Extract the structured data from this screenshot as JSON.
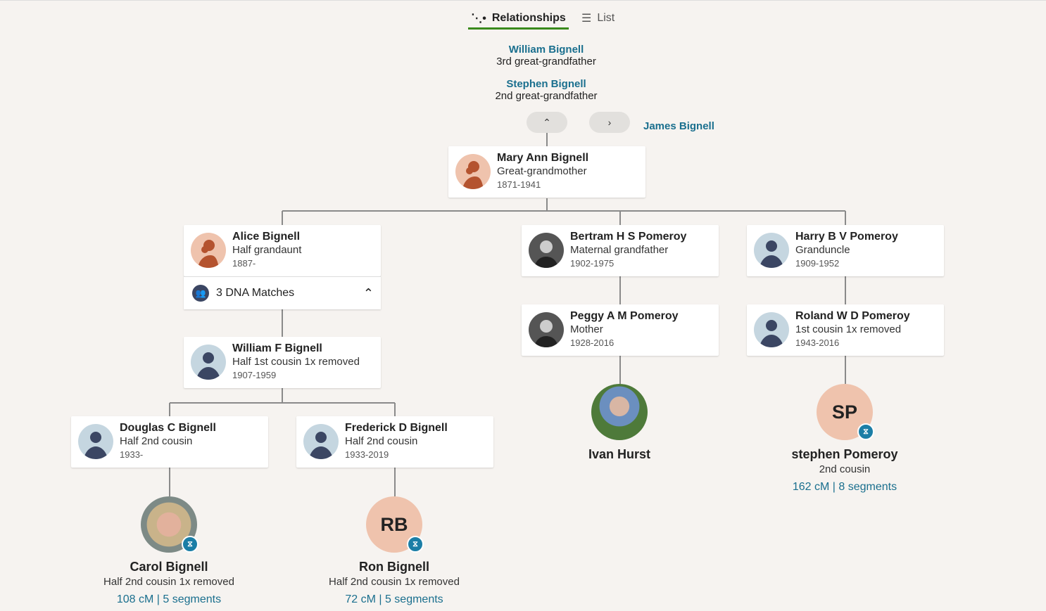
{
  "tabs": {
    "relationships": "Relationships",
    "list": "List",
    "active": "relationships",
    "accent": "#3a8a1c"
  },
  "ancestors": [
    {
      "name": "William Bignell",
      "relation": "3rd great-grandfather"
    },
    {
      "name": "Stephen Bignell",
      "relation": "2nd great-grandfather"
    }
  ],
  "sibling_link": "James Bignell",
  "cards": {
    "mary": {
      "name": "Mary Ann Bignell",
      "relation": "Great-grandmother",
      "years": "1871-1941",
      "avatar": "female-silhouette"
    },
    "alice": {
      "name": "Alice Bignell",
      "relation": "Half grandaunt",
      "years": "1887-",
      "avatar": "female-silhouette"
    },
    "bertram": {
      "name": "Bertram H S Pomeroy",
      "relation": "Maternal grandfather",
      "years": "1902-1975",
      "avatar": "photo"
    },
    "harry": {
      "name": "Harry B V Pomeroy",
      "relation": "Granduncle",
      "years": "1909-1952",
      "avatar": "male-silhouette"
    },
    "peggy": {
      "name": "Peggy A M Pomeroy",
      "relation": "Mother",
      "years": "1928-2016",
      "avatar": "photo"
    },
    "roland": {
      "name": "Roland W D Pomeroy",
      "relation": "1st cousin 1x removed",
      "years": "1943-2016",
      "avatar": "male-silhouette"
    },
    "williamf": {
      "name": "William F Bignell",
      "relation": "Half 1st cousin 1x removed",
      "years": "1907-1959",
      "avatar": "male-silhouette"
    },
    "douglas": {
      "name": "Douglas C Bignell",
      "relation": "Half 2nd cousin",
      "years": "1933-",
      "avatar": "male-silhouette"
    },
    "frederick": {
      "name": "Frederick D Bignell",
      "relation": "Half 2nd cousin",
      "years": "1933-2019",
      "avatar": "male-silhouette"
    }
  },
  "dna_matches_toggle": "3 DNA Matches",
  "matches": {
    "ivan": {
      "name": "Ivan Hurst"
    },
    "stephen": {
      "initials": "SP",
      "name": "stephen Pomeroy",
      "relation": "2nd cousin",
      "dna": "162 cM | 8 segments"
    },
    "carol": {
      "name": "Carol Bignell",
      "relation": "Half 2nd cousin 1x removed",
      "dna": "108 cM | 5 segments"
    },
    "ron": {
      "initials": "RB",
      "name": "Ron Bignell",
      "relation": "Half 2nd cousin 1x removed",
      "dna": "72 cM | 5 segments"
    }
  }
}
